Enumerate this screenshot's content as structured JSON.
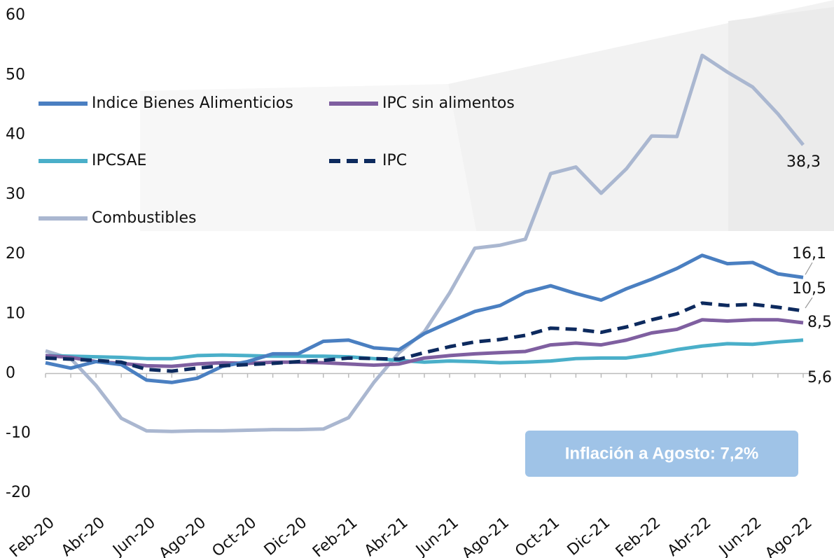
{
  "chart_data": {
    "type": "line",
    "categories": [
      "Feb-20",
      null,
      "Abr-20",
      null,
      "Jun-20",
      null,
      "Ago-20",
      null,
      "Oct-20",
      null,
      "Dic-20",
      null,
      "Feb-21",
      null,
      "Abr-21",
      null,
      "Jun-21",
      null,
      "Ago-21",
      null,
      "Oct-21",
      null,
      "Dic-21",
      null,
      "Feb-22",
      null,
      "Abr-22",
      null,
      "Jun-22",
      null,
      "Ago-22"
    ],
    "series": [
      {
        "name": "Combustibles",
        "color": "#aab7d0",
        "dashed": false,
        "values": [
          3.8,
          2.5,
          -2,
          -7.5,
          -9.6,
          -9.7,
          -9.6,
          -9.6,
          -9.5,
          -9.4,
          -9.4,
          -9.3,
          -7.4,
          -1.5,
          3.5,
          7,
          13.5,
          21,
          21.5,
          22.5,
          33.5,
          34.6,
          30.2,
          34.3,
          39.8,
          39.7,
          53.3,
          50.5,
          48,
          43.5,
          38.3
        ],
        "value_labels": [
          null,
          null,
          null,
          null,
          null,
          null,
          null,
          null,
          null,
          null,
          null,
          null,
          null,
          null,
          null,
          null,
          null,
          null,
          null,
          null,
          null,
          null,
          null,
          null,
          null,
          null,
          null,
          null,
          null,
          null,
          "38,3"
        ]
      },
      {
        "name": "IPCSAE",
        "color": "#4aafc9",
        "dashed": false,
        "values": [
          3.0,
          2.9,
          2.8,
          2.7,
          2.5,
          2.5,
          3.0,
          3.1,
          3.0,
          2.9,
          2.9,
          2.9,
          2.8,
          2.5,
          2.2,
          1.9,
          2.1,
          2.0,
          1.8,
          1.9,
          2.1,
          2.5,
          2.6,
          2.6,
          3.2,
          4.0,
          4.6,
          5.0,
          4.9,
          5.3,
          5.6
        ],
        "value_labels": [
          null,
          null,
          null,
          null,
          null,
          null,
          null,
          null,
          null,
          null,
          null,
          null,
          null,
          null,
          null,
          null,
          null,
          null,
          null,
          null,
          null,
          null,
          null,
          null,
          null,
          null,
          null,
          null,
          null,
          null,
          "5,6"
        ]
      },
      {
        "name": "IPC sin alimentos",
        "color": "#7f5fa0",
        "dashed": false,
        "values": [
          3.0,
          2.7,
          2.0,
          1.7,
          1.3,
          1.2,
          1.6,
          1.8,
          1.7,
          1.9,
          1.9,
          1.8,
          1.6,
          1.4,
          1.6,
          2.6,
          3.0,
          3.3,
          3.5,
          3.7,
          4.8,
          5.1,
          4.8,
          5.6,
          6.8,
          7.4,
          9.0,
          8.8,
          9.0,
          9.0,
          8.5
        ],
        "value_labels": [
          null,
          null,
          null,
          null,
          null,
          null,
          null,
          null,
          null,
          null,
          null,
          null,
          null,
          null,
          null,
          null,
          null,
          null,
          null,
          null,
          null,
          null,
          null,
          null,
          null,
          null,
          null,
          null,
          null,
          null,
          "8,5"
        ]
      },
      {
        "name": "Indice Bienes Alimenticios",
        "color": "#4a7fc1",
        "dashed": false,
        "values": [
          1.8,
          0.9,
          2.0,
          1.5,
          -1.1,
          -1.5,
          -0.8,
          1.2,
          2.0,
          3.3,
          3.3,
          5.4,
          5.6,
          4.3,
          4.0,
          6.7,
          8.6,
          10.4,
          11.4,
          13.6,
          14.7,
          13.4,
          12.3,
          14.2,
          15.8,
          17.6,
          19.8,
          18.4,
          18.6,
          16.7,
          16.1
        ],
        "value_labels": [
          null,
          null,
          null,
          null,
          null,
          null,
          null,
          null,
          null,
          null,
          null,
          null,
          null,
          null,
          null,
          null,
          null,
          null,
          null,
          null,
          null,
          null,
          null,
          null,
          null,
          null,
          null,
          null,
          null,
          null,
          "16,1"
        ]
      },
      {
        "name": "IPC",
        "color": "#0d2a5e",
        "dashed": true,
        "values": [
          2.6,
          2.4,
          2.2,
          1.9,
          0.7,
          0.4,
          0.9,
          1.3,
          1.5,
          1.7,
          2.0,
          2.2,
          2.6,
          2.5,
          2.4,
          3.5,
          4.5,
          5.3,
          5.7,
          6.4,
          7.6,
          7.4,
          6.9,
          7.8,
          9.0,
          10.0,
          11.8,
          11.4,
          11.6,
          11.1,
          10.5
        ],
        "value_labels": [
          null,
          null,
          null,
          null,
          null,
          null,
          null,
          null,
          null,
          null,
          null,
          null,
          null,
          null,
          null,
          null,
          null,
          null,
          null,
          null,
          null,
          null,
          null,
          null,
          null,
          null,
          null,
          null,
          null,
          null,
          "10,5"
        ]
      }
    ],
    "legend_order": [
      3,
      2,
      1,
      4,
      0
    ],
    "ylim": [
      -20,
      60
    ],
    "yticks": [
      -20,
      -10,
      0,
      10,
      20,
      30,
      40,
      50,
      60
    ],
    "legend": "upper left",
    "annotation": "Inflación a Agosto: 7,2%"
  }
}
